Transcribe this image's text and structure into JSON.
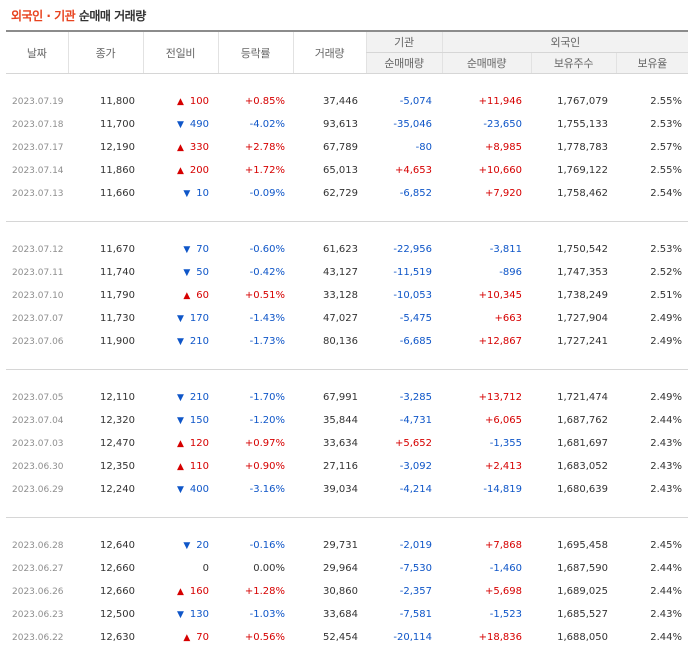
{
  "title": {
    "foreign": "외국인",
    "sep": "·",
    "inst": "기관",
    "rest": "순매매 거래량"
  },
  "headers": {
    "date": "날짜",
    "close": "종가",
    "change": "전일비",
    "rate": "등락률",
    "volume": "거래량",
    "inst_group": "기관",
    "foreign_group": "외국인",
    "inst_net": "순매매량",
    "foreign_net": "순매매량",
    "holdings": "보유주수",
    "ratio": "보유율"
  },
  "rows": [
    {
      "date": "2023.07.19",
      "close": "11,800",
      "dir": "up",
      "change": "100",
      "rate": "+0.85%",
      "volume": "37,446",
      "inst": "-5,074",
      "foreign": "+11,946",
      "holdings": "1,767,079",
      "ratio": "2.55%"
    },
    {
      "date": "2023.07.18",
      "close": "11,700",
      "dir": "down",
      "change": "490",
      "rate": "-4.02%",
      "volume": "93,613",
      "inst": "-35,046",
      "foreign": "-23,650",
      "holdings": "1,755,133",
      "ratio": "2.53%"
    },
    {
      "date": "2023.07.17",
      "close": "12,190",
      "dir": "up",
      "change": "330",
      "rate": "+2.78%",
      "volume": "67,789",
      "inst": "-80",
      "foreign": "+8,985",
      "holdings": "1,778,783",
      "ratio": "2.57%"
    },
    {
      "date": "2023.07.14",
      "close": "11,860",
      "dir": "up",
      "change": "200",
      "rate": "+1.72%",
      "volume": "65,013",
      "inst": "+4,653",
      "foreign": "+10,660",
      "holdings": "1,769,122",
      "ratio": "2.55%"
    },
    {
      "date": "2023.07.13",
      "close": "11,660",
      "dir": "down",
      "change": "10",
      "rate": "-0.09%",
      "volume": "62,729",
      "inst": "-6,852",
      "foreign": "+7,920",
      "holdings": "1,758,462",
      "ratio": "2.54%"
    },
    {
      "date": "2023.07.12",
      "close": "11,670",
      "dir": "down",
      "change": "70",
      "rate": "-0.60%",
      "volume": "61,623",
      "inst": "-22,956",
      "foreign": "-3,811",
      "holdings": "1,750,542",
      "ratio": "2.53%"
    },
    {
      "date": "2023.07.11",
      "close": "11,740",
      "dir": "down",
      "change": "50",
      "rate": "-0.42%",
      "volume": "43,127",
      "inst": "-11,519",
      "foreign": "-896",
      "holdings": "1,747,353",
      "ratio": "2.52%"
    },
    {
      "date": "2023.07.10",
      "close": "11,790",
      "dir": "up",
      "change": "60",
      "rate": "+0.51%",
      "volume": "33,128",
      "inst": "-10,053",
      "foreign": "+10,345",
      "holdings": "1,738,249",
      "ratio": "2.51%"
    },
    {
      "date": "2023.07.07",
      "close": "11,730",
      "dir": "down",
      "change": "170",
      "rate": "-1.43%",
      "volume": "47,027",
      "inst": "-5,475",
      "foreign": "+663",
      "holdings": "1,727,904",
      "ratio": "2.49%"
    },
    {
      "date": "2023.07.06",
      "close": "11,900",
      "dir": "down",
      "change": "210",
      "rate": "-1.73%",
      "volume": "80,136",
      "inst": "-6,685",
      "foreign": "+12,867",
      "holdings": "1,727,241",
      "ratio": "2.49%"
    },
    {
      "date": "2023.07.05",
      "close": "12,110",
      "dir": "down",
      "change": "210",
      "rate": "-1.70%",
      "volume": "67,991",
      "inst": "-3,285",
      "foreign": "+13,712",
      "holdings": "1,721,474",
      "ratio": "2.49%"
    },
    {
      "date": "2023.07.04",
      "close": "12,320",
      "dir": "down",
      "change": "150",
      "rate": "-1.20%",
      "volume": "35,844",
      "inst": "-4,731",
      "foreign": "+6,065",
      "holdings": "1,687,762",
      "ratio": "2.44%"
    },
    {
      "date": "2023.07.03",
      "close": "12,470",
      "dir": "up",
      "change": "120",
      "rate": "+0.97%",
      "volume": "33,634",
      "inst": "+5,652",
      "foreign": "-1,355",
      "holdings": "1,681,697",
      "ratio": "2.43%"
    },
    {
      "date": "2023.06.30",
      "close": "12,350",
      "dir": "up",
      "change": "110",
      "rate": "+0.90%",
      "volume": "27,116",
      "inst": "-3,092",
      "foreign": "+2,413",
      "holdings": "1,683,052",
      "ratio": "2.43%"
    },
    {
      "date": "2023.06.29",
      "close": "12,240",
      "dir": "down",
      "change": "400",
      "rate": "-3.16%",
      "volume": "39,034",
      "inst": "-4,214",
      "foreign": "-14,819",
      "holdings": "1,680,639",
      "ratio": "2.43%"
    },
    {
      "date": "2023.06.28",
      "close": "12,640",
      "dir": "down",
      "change": "20",
      "rate": "-0.16%",
      "volume": "29,731",
      "inst": "-2,019",
      "foreign": "+7,868",
      "holdings": "1,695,458",
      "ratio": "2.45%"
    },
    {
      "date": "2023.06.27",
      "close": "12,660",
      "dir": "flat",
      "change": "0",
      "rate": "0.00%",
      "volume": "29,964",
      "inst": "-7,530",
      "foreign": "-1,460",
      "holdings": "1,687,590",
      "ratio": "2.44%"
    },
    {
      "date": "2023.06.26",
      "close": "12,660",
      "dir": "up",
      "change": "160",
      "rate": "+1.28%",
      "volume": "30,860",
      "inst": "-2,357",
      "foreign": "+5,698",
      "holdings": "1,689,025",
      "ratio": "2.44%"
    },
    {
      "date": "2023.06.23",
      "close": "12,500",
      "dir": "down",
      "change": "130",
      "rate": "-1.03%",
      "volume": "33,684",
      "inst": "-7,581",
      "foreign": "-1,523",
      "holdings": "1,685,527",
      "ratio": "2.43%"
    },
    {
      "date": "2023.06.22",
      "close": "12,630",
      "dir": "up",
      "change": "70",
      "rate": "+0.56%",
      "volume": "52,454",
      "inst": "-20,114",
      "foreign": "+18,836",
      "holdings": "1,688,050",
      "ratio": "2.44%"
    }
  ],
  "colors": {
    "up": "#d60000",
    "down": "#0f56c8",
    "title_accent": "#e8431f"
  },
  "icons": {
    "up": "triangle-up-icon",
    "down": "triangle-down-icon"
  }
}
